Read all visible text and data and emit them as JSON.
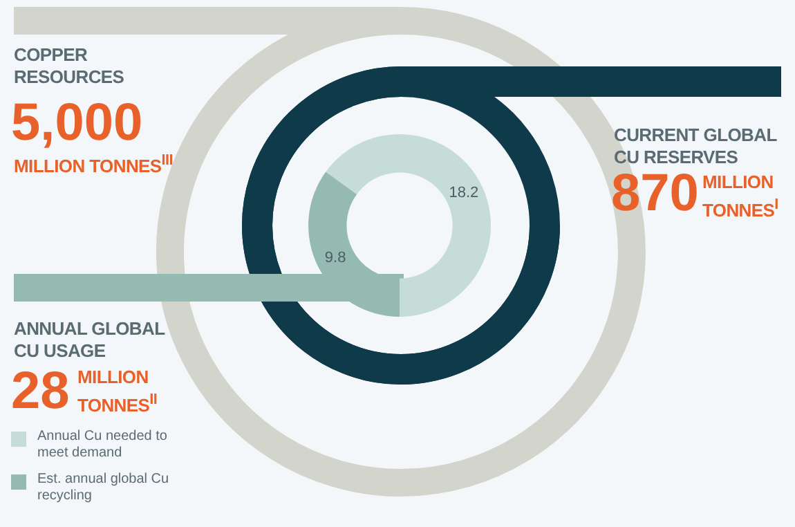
{
  "chart_data": {
    "type": "donut",
    "categories": [
      "Annual Cu needed to meet demand",
      "Est. annual global Cu recycling"
    ],
    "values": [
      18.2,
      9.8
    ],
    "colors": [
      "#c6dcd6",
      "#95bab1"
    ],
    "data_labels": true,
    "legend": "bottom left",
    "annotations": [
      "COPPER RESOURCES",
      "5,000",
      "MILLION TONNES$^{III}$",
      "CURRENT GLOBAL CU RESERVES",
      "870",
      "MILLION TONNES$^{I}$",
      "ANNUAL GLOBAL CU USAGE",
      "28",
      "MILLION TONNES$^{II}$"
    ]
  }
}
